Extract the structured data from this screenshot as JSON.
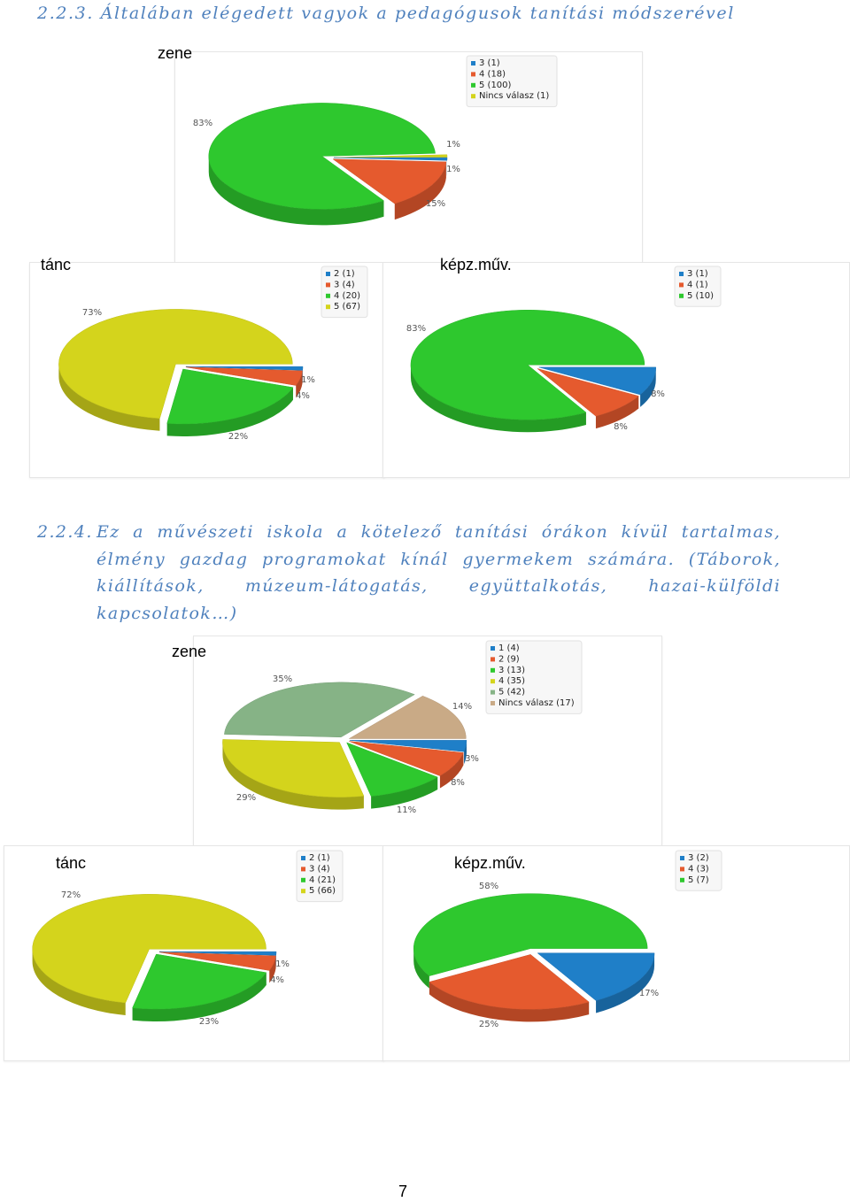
{
  "section1": {
    "number": "2.2.3.",
    "title": "Általában elégedett vagyok a pedagógusok tanítási módszerével"
  },
  "section2": {
    "number": "2.2.4.",
    "text": "Ez a művészeti iskola a kötelező tanítási órákon kívül tartalmas, élmény gazdag programokat kínál gyermekem számára. (Táborok, kiállítások, múzeum-látogatás, együttalkotás, hazai-külföldi kapcsolatok…)"
  },
  "page_number": "7",
  "chart_data": [
    {
      "id": "s1_zene",
      "type": "pie",
      "title": "zene",
      "slices": [
        {
          "label": "3 (1)",
          "value": 1,
          "pct": "1%",
          "color": "#1f7fc8"
        },
        {
          "label": "4 (18)",
          "value": 18,
          "pct": "15%",
          "color": "#e55a2e"
        },
        {
          "label": "5 (100)",
          "value": 100,
          "pct": "83%",
          "color": "#2ec82e"
        },
        {
          "label": "Nincs válasz (1)",
          "value": 1,
          "pct": "1%",
          "color": "#d4d41c"
        }
      ]
    },
    {
      "id": "s1_tanc",
      "type": "pie",
      "title": "tánc",
      "slices": [
        {
          "label": "2 (1)",
          "value": 1,
          "pct": "1%",
          "color": "#1f7fc8"
        },
        {
          "label": "3 (4)",
          "value": 4,
          "pct": "4%",
          "color": "#e55a2e"
        },
        {
          "label": "4 (20)",
          "value": 20,
          "pct": "22%",
          "color": "#2ec82e"
        },
        {
          "label": "5 (67)",
          "value": 67,
          "pct": "73%",
          "color": "#d4d41c"
        }
      ]
    },
    {
      "id": "s1_kepz",
      "type": "pie",
      "title": "képz.műv.",
      "slices": [
        {
          "label": "3 (1)",
          "value": 1,
          "pct": "8%",
          "color": "#1f7fc8"
        },
        {
          "label": "4 (1)",
          "value": 1,
          "pct": "8%",
          "color": "#e55a2e"
        },
        {
          "label": "5 (10)",
          "value": 10,
          "pct": "83%",
          "color": "#2ec82e"
        }
      ]
    },
    {
      "id": "s2_zene",
      "type": "pie",
      "title": "zene",
      "slices": [
        {
          "label": "1 (4)",
          "value": 4,
          "pct": "3%",
          "color": "#1f7fc8"
        },
        {
          "label": "2 (9)",
          "value": 9,
          "pct": "8%",
          "color": "#e55a2e"
        },
        {
          "label": "3 (13)",
          "value": 13,
          "pct": "11%",
          "color": "#2ec82e"
        },
        {
          "label": "4 (35)",
          "value": 35,
          "pct": "29%",
          "color": "#d4d41c"
        },
        {
          "label": "5 (42)",
          "value": 42,
          "pct": "35%",
          "color": "#86b386"
        },
        {
          "label": "Nincs válasz (17)",
          "value": 17,
          "pct": "14%",
          "color": "#c9aa86"
        }
      ]
    },
    {
      "id": "s2_tanc",
      "type": "pie",
      "title": "tánc",
      "slices": [
        {
          "label": "2 (1)",
          "value": 1,
          "pct": "1%",
          "color": "#1f7fc8"
        },
        {
          "label": "3 (4)",
          "value": 4,
          "pct": "4%",
          "color": "#e55a2e"
        },
        {
          "label": "4 (21)",
          "value": 21,
          "pct": "23%",
          "color": "#2ec82e"
        },
        {
          "label": "5 (66)",
          "value": 66,
          "pct": "72%",
          "color": "#d4d41c"
        }
      ]
    },
    {
      "id": "s2_kepz",
      "type": "pie",
      "title": "képz.műv.",
      "slices": [
        {
          "label": "3 (2)",
          "value": 2,
          "pct": "17%",
          "color": "#1f7fc8"
        },
        {
          "label": "4 (3)",
          "value": 3,
          "pct": "25%",
          "color": "#e55a2e"
        },
        {
          "label": "5 (7)",
          "value": 7,
          "pct": "58%",
          "color": "#2ec82e"
        }
      ]
    }
  ]
}
